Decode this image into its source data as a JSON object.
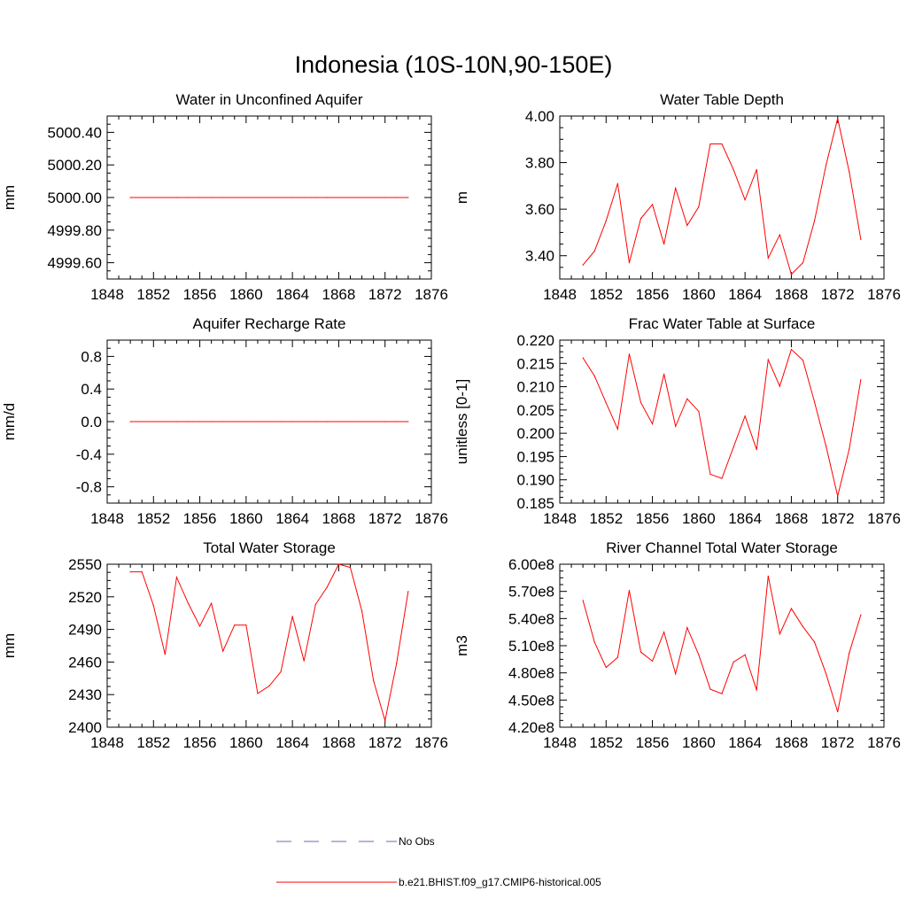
{
  "figure_title": "Indonesia (10S-10N,90-150E)",
  "legend": [
    {
      "label": "No Obs",
      "color": "#6a6ab0",
      "dash": "dashed"
    },
    {
      "label": "b.e21.BHIST.f09_g17.CMIP6-historical.005",
      "color": "#ff0000",
      "dash": "solid"
    }
  ],
  "chart_data": [
    {
      "type": "line",
      "title": "Water in Unconfined Aquifer",
      "xlabel": "",
      "ylabel": "mm",
      "xlim": [
        1848,
        1876
      ],
      "ylim": [
        4999.5,
        5000.5
      ],
      "xticks": [
        1848,
        1852,
        1856,
        1860,
        1864,
        1868,
        1872,
        1876
      ],
      "xtick_labels": [
        "1848",
        "1852",
        "1856",
        "1860",
        "1864",
        "1868",
        "1872",
        "1876"
      ],
      "yticks": [
        4999.6,
        4999.8,
        5000.0,
        5000.2,
        5000.4
      ],
      "ytick_labels": [
        "4999.60",
        "4999.80",
        "5000.00",
        "5000.20",
        "5000.40"
      ],
      "series": [
        {
          "name": "b.e21.BHIST.f09_g17.CMIP6-historical.005",
          "color": "#ff0000",
          "x": [
            1850,
            1851,
            1852,
            1853,
            1854,
            1855,
            1856,
            1857,
            1858,
            1859,
            1860,
            1861,
            1862,
            1863,
            1864,
            1865,
            1866,
            1867,
            1868,
            1869,
            1870,
            1871,
            1872,
            1873,
            1874
          ],
          "y": [
            5000,
            5000,
            5000,
            5000,
            5000,
            5000,
            5000,
            5000,
            5000,
            5000,
            5000,
            5000,
            5000,
            5000,
            5000,
            5000,
            5000,
            5000,
            5000,
            5000,
            5000,
            5000,
            5000,
            5000,
            5000
          ]
        }
      ]
    },
    {
      "type": "line",
      "title": "Water Table Depth",
      "xlabel": "",
      "ylabel": "m",
      "xlim": [
        1848,
        1876
      ],
      "ylim": [
        3.3,
        4.0
      ],
      "xticks": [
        1848,
        1852,
        1856,
        1860,
        1864,
        1868,
        1872,
        1876
      ],
      "xtick_labels": [
        "1848",
        "1852",
        "1856",
        "1860",
        "1864",
        "1868",
        "1872",
        "1876"
      ],
      "yticks": [
        3.4,
        3.6,
        3.8,
        4.0
      ],
      "ytick_labels": [
        "3.40",
        "3.60",
        "3.80",
        "4.00"
      ],
      "series": [
        {
          "name": "b.e21.BHIST.f09_g17.CMIP6-historical.005",
          "color": "#ff0000",
          "x": [
            1850,
            1851,
            1852,
            1853,
            1854,
            1855,
            1856,
            1857,
            1858,
            1859,
            1860,
            1861,
            1862,
            1863,
            1864,
            1865,
            1866,
            1867,
            1868,
            1869,
            1870,
            1871,
            1872,
            1873,
            1874
          ],
          "y": [
            3.36,
            3.42,
            3.55,
            3.71,
            3.37,
            3.56,
            3.62,
            3.45,
            3.69,
            3.53,
            3.61,
            3.88,
            3.88,
            3.77,
            3.64,
            3.77,
            3.39,
            3.49,
            3.32,
            3.37,
            3.55,
            3.79,
            3.99,
            3.76,
            3.47
          ]
        }
      ]
    },
    {
      "type": "line",
      "title": "Aquifer Recharge Rate",
      "xlabel": "",
      "ylabel": "mm/d",
      "xlim": [
        1848,
        1876
      ],
      "ylim": [
        -1.0,
        1.0
      ],
      "xticks": [
        1848,
        1852,
        1856,
        1860,
        1864,
        1868,
        1872,
        1876
      ],
      "xtick_labels": [
        "1848",
        "1852",
        "1856",
        "1860",
        "1864",
        "1868",
        "1872",
        "1876"
      ],
      "yticks": [
        -0.8,
        -0.4,
        0.0,
        0.4,
        0.8
      ],
      "ytick_labels": [
        "-0.8",
        "-0.4",
        "0.0",
        "0.4",
        "0.8"
      ],
      "series": [
        {
          "name": "b.e21.BHIST.f09_g17.CMIP6-historical.005",
          "color": "#ff0000",
          "x": [
            1850,
            1851,
            1852,
            1853,
            1854,
            1855,
            1856,
            1857,
            1858,
            1859,
            1860,
            1861,
            1862,
            1863,
            1864,
            1865,
            1866,
            1867,
            1868,
            1869,
            1870,
            1871,
            1872,
            1873,
            1874
          ],
          "y": [
            0,
            0,
            0,
            0,
            0,
            0,
            0,
            0,
            0,
            0,
            0,
            0,
            0,
            0,
            0,
            0,
            0,
            0,
            0,
            0,
            0,
            0,
            0,
            0,
            0
          ]
        }
      ]
    },
    {
      "type": "line",
      "title": "Frac Water Table at Surface",
      "xlabel": "",
      "ylabel": "unitless [0-1]",
      "xlim": [
        1848,
        1876
      ],
      "ylim": [
        0.185,
        0.22
      ],
      "xticks": [
        1848,
        1852,
        1856,
        1860,
        1864,
        1868,
        1872,
        1876
      ],
      "xtick_labels": [
        "1848",
        "1852",
        "1856",
        "1860",
        "1864",
        "1868",
        "1872",
        "1876"
      ],
      "yticks": [
        0.185,
        0.19,
        0.195,
        0.2,
        0.205,
        0.21,
        0.215,
        0.22
      ],
      "ytick_labels": [
        "0.185",
        "0.190",
        "0.195",
        "0.200",
        "0.205",
        "0.210",
        "0.215",
        "0.220"
      ],
      "series": [
        {
          "name": "b.e21.BHIST.f09_g17.CMIP6-historical.005",
          "color": "#ff0000",
          "x": [
            1850,
            1851,
            1852,
            1853,
            1854,
            1855,
            1856,
            1857,
            1858,
            1859,
            1860,
            1861,
            1862,
            1863,
            1864,
            1865,
            1866,
            1867,
            1868,
            1869,
            1870,
            1871,
            1872,
            1873,
            1874
          ],
          "y": [
            0.2162,
            0.2123,
            0.2065,
            0.2009,
            0.217,
            0.2066,
            0.202,
            0.2127,
            0.2015,
            0.2074,
            0.2047,
            0.1912,
            0.1903,
            0.197,
            0.2037,
            0.1965,
            0.2158,
            0.2101,
            0.218,
            0.2157,
            0.2067,
            0.1972,
            0.1865,
            0.1966,
            0.2115
          ]
        }
      ]
    },
    {
      "type": "line",
      "title": "Total Water Storage",
      "xlabel": "",
      "ylabel": "mm",
      "xlim": [
        1848,
        1876
      ],
      "ylim": [
        2400,
        2550
      ],
      "xticks": [
        1848,
        1852,
        1856,
        1860,
        1864,
        1868,
        1872,
        1876
      ],
      "xtick_labels": [
        "1848",
        "1852",
        "1856",
        "1860",
        "1864",
        "1868",
        "1872",
        "1876"
      ],
      "yticks": [
        2400,
        2430,
        2460,
        2490,
        2520,
        2550
      ],
      "ytick_labels": [
        "2400",
        "2430",
        "2460",
        "2490",
        "2520",
        "2550"
      ],
      "series": [
        {
          "name": "b.e21.BHIST.f09_g17.CMIP6-historical.005",
          "color": "#ff0000",
          "x": [
            1850,
            1851,
            1852,
            1853,
            1854,
            1855,
            1856,
            1857,
            1858,
            1859,
            1860,
            1861,
            1862,
            1863,
            1864,
            1865,
            1866,
            1867,
            1868,
            1869,
            1870,
            1871,
            1872,
            1873,
            1874
          ],
          "y": [
            2543,
            2543,
            2512,
            2467,
            2538,
            2514,
            2493,
            2514,
            2470,
            2494,
            2494,
            2431,
            2438,
            2451,
            2502,
            2461,
            2513,
            2529,
            2550,
            2547,
            2507,
            2443,
            2406,
            2459,
            2525
          ]
        }
      ]
    },
    {
      "type": "line",
      "title": "River Channel Total Water Storage",
      "xlabel": "",
      "ylabel": "m3",
      "xlim": [
        1848,
        1876
      ],
      "ylim": [
        420000000,
        600000000
      ],
      "xticks": [
        1848,
        1852,
        1856,
        1860,
        1864,
        1868,
        1872,
        1876
      ],
      "xtick_labels": [
        "1848",
        "1852",
        "1856",
        "1860",
        "1864",
        "1868",
        "1872",
        "1876"
      ],
      "yticks": [
        420000000,
        450000000,
        480000000,
        510000000,
        540000000,
        570000000,
        600000000
      ],
      "ytick_labels": [
        "4.20e8",
        "4.50e8",
        "4.80e8",
        "5.10e8",
        "5.40e8",
        "5.70e8",
        "6.00e8"
      ],
      "series": [
        {
          "name": "b.e21.BHIST.f09_g17.CMIP6-historical.005",
          "color": "#ff0000",
          "x": [
            1850,
            1851,
            1852,
            1853,
            1854,
            1855,
            1856,
            1857,
            1858,
            1859,
            1860,
            1861,
            1862,
            1863,
            1864,
            1865,
            1866,
            1867,
            1868,
            1869,
            1870,
            1871,
            1872,
            1873,
            1874
          ],
          "y": [
            560000000,
            514000000,
            486000000,
            497000000,
            571000000,
            503000000,
            493000000,
            525000000,
            479000000,
            530000000,
            500000000,
            462000000,
            457000000,
            492000000,
            500000000,
            461000000,
            587000000,
            523000000,
            551000000,
            531000000,
            514000000,
            479000000,
            437000000,
            502000000,
            544000000
          ]
        }
      ]
    }
  ]
}
